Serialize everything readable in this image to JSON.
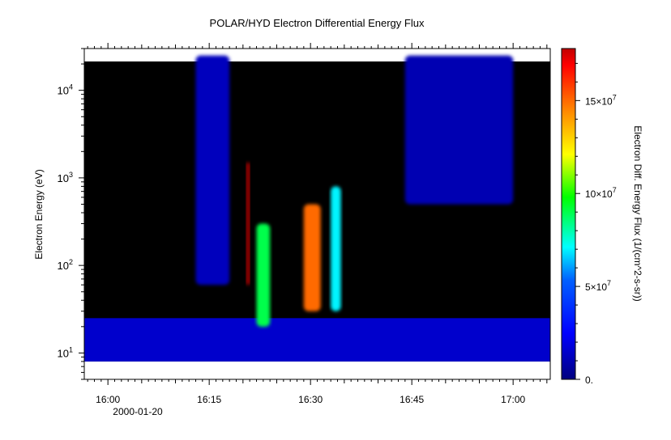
{
  "chart_data": {
    "type": "heatmap",
    "title": "POLAR/HYD  Electron Differential Energy Flux",
    "ylabel": "Electron Energy (eV)",
    "colorbar_label": "Electron Diff. Energy Flux (1/(cm^2-s-sr))",
    "x_ticks": [
      {
        "t": 0,
        "label": "16:00"
      },
      {
        "t": 15,
        "label": "16:15"
      },
      {
        "t": 30,
        "label": "16:30"
      },
      {
        "t": 45,
        "label": "16:45"
      },
      {
        "t": 60,
        "label": "17:00"
      }
    ],
    "x_date_label": "2000-01-20",
    "x_range_minutes_after_1600": [
      -3.5,
      65.5
    ],
    "y_scale": "log",
    "y_range_eV": [
      5,
      30000
    ],
    "y_ticks": [
      {
        "value": 10,
        "base": "10",
        "exp": "1"
      },
      {
        "value": 100,
        "base": "10",
        "exp": "2"
      },
      {
        "value": 1000,
        "base": "10",
        "exp": "3"
      },
      {
        "value": 10000,
        "base": "10",
        "exp": "4"
      }
    ],
    "colorbar_ticks": [
      {
        "value": 0,
        "label": "0."
      },
      {
        "value": 50000000,
        "label": "5×10",
        "exp": "7"
      },
      {
        "value": 100000000,
        "label": "10×10",
        "exp": "7"
      },
      {
        "value": 150000000,
        "label": "15×10",
        "exp": "7"
      }
    ],
    "colorbar_range": [
      0,
      178000000
    ],
    "colormap": [
      "#00007f",
      "#0000ff",
      "#00ffff",
      "#00ff00",
      "#ffff00",
      "#ff7f00",
      "#ff0000",
      "#7f0000"
    ],
    "no_data_color": "#000000",
    "features": [
      {
        "t": [
          -3.5,
          65.5
        ],
        "e_eV": [
          8,
          25
        ],
        "flux": 15000000
      },
      {
        "t": [
          13,
          18
        ],
        "e_eV": [
          60,
          25000
        ],
        "flux": 12000000
      },
      {
        "t": [
          20.5,
          21
        ],
        "e_eV": [
          60,
          1500
        ],
        "flux": 178000000
      },
      {
        "t": [
          22,
          24
        ],
        "e_eV": [
          20,
          300
        ],
        "flux": 90000000
      },
      {
        "t": [
          29,
          31.5
        ],
        "e_eV": [
          30,
          500
        ],
        "flux": 150000000
      },
      {
        "t": [
          33,
          34.5
        ],
        "e_eV": [
          30,
          800
        ],
        "flux": 70000000
      },
      {
        "t": [
          44,
          60
        ],
        "e_eV": [
          500,
          25000
        ],
        "flux": 10000000
      }
    ]
  }
}
